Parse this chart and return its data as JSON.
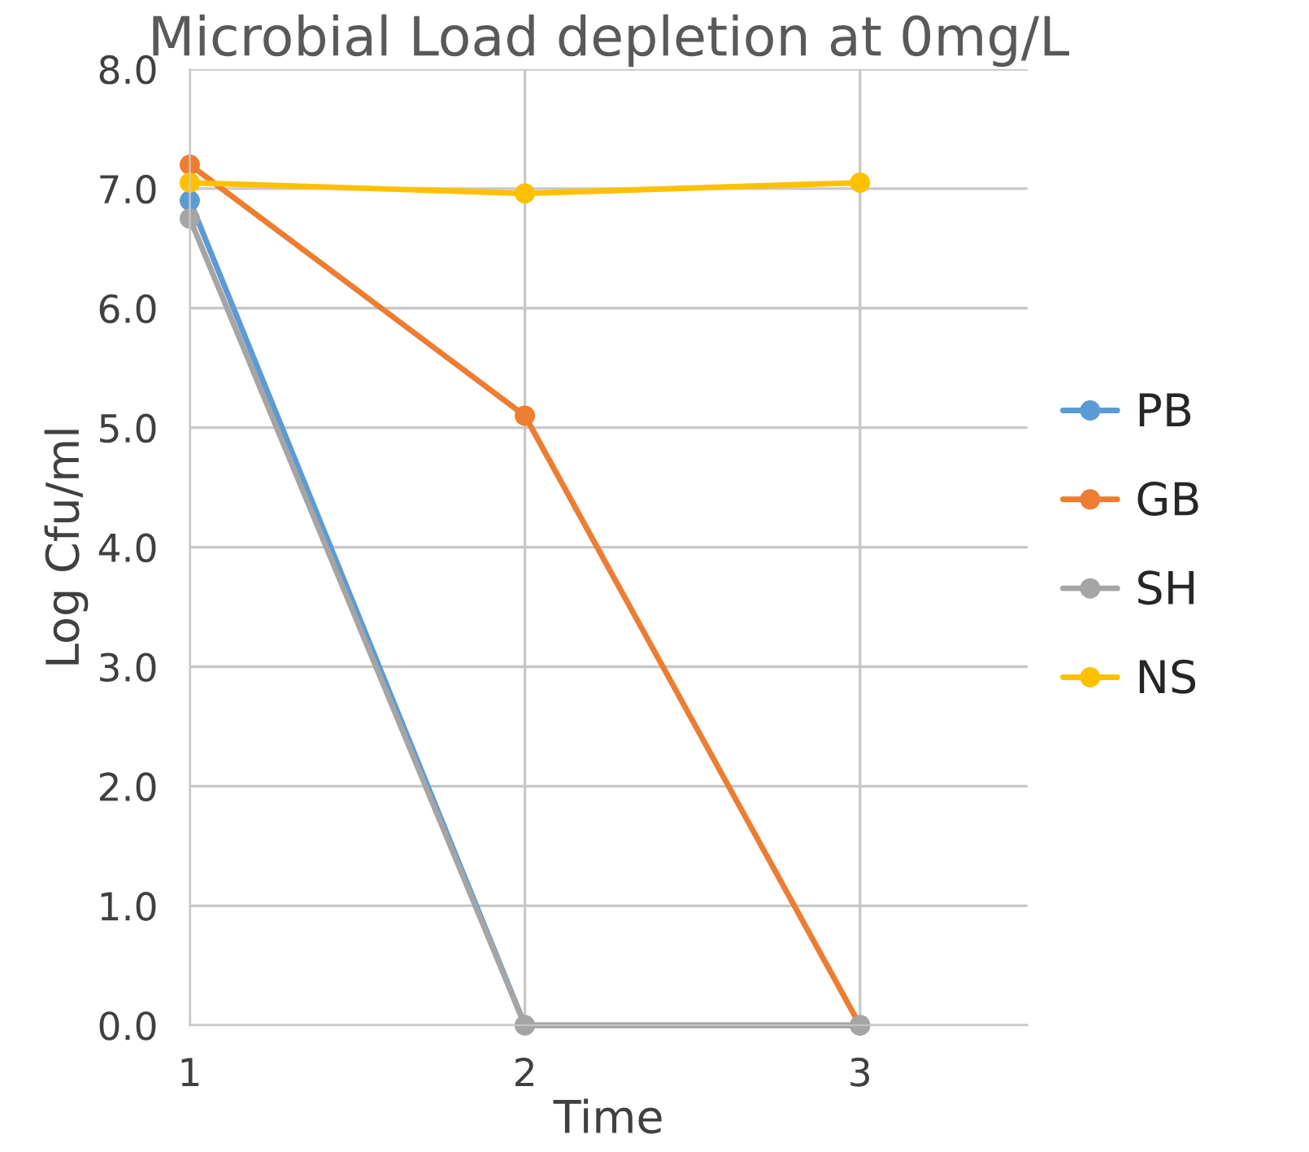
{
  "chart_data": {
    "type": "line",
    "title": "Microbial Load depletion at 0mg/L",
    "xlabel": "Time",
    "ylabel": "Log Cfu/ml",
    "x": [
      1,
      2,
      3
    ],
    "xlim": [
      1,
      3.5
    ],
    "xticks": [
      1,
      2,
      3
    ],
    "ylim": [
      0,
      8
    ],
    "yticks": [
      {
        "value": 0,
        "label": "0.0"
      },
      {
        "value": 1,
        "label": "1.0"
      },
      {
        "value": 2,
        "label": "2.0"
      },
      {
        "value": 3,
        "label": "3.0"
      },
      {
        "value": 4,
        "label": "4.0"
      },
      {
        "value": 5,
        "label": "5.0"
      },
      {
        "value": 6,
        "label": "6.0"
      },
      {
        "value": 7,
        "label": "7.0"
      },
      {
        "value": 8,
        "label": "8.0"
      }
    ],
    "grid": true,
    "legend": "right",
    "marker": "circle",
    "line_style": "solid",
    "series": [
      {
        "name": "PB",
        "color": "#5b9bd5",
        "values": [
          6.9,
          0,
          0
        ]
      },
      {
        "name": "GB",
        "color": "#ed7d31",
        "values": [
          7.2,
          5.1,
          0
        ]
      },
      {
        "name": "SH",
        "color": "#a5a5a5",
        "values": [
          6.75,
          0,
          0
        ]
      },
      {
        "name": "NS",
        "color": "#ffc000",
        "values": [
          7.05,
          6.96,
          7.05
        ]
      }
    ]
  }
}
